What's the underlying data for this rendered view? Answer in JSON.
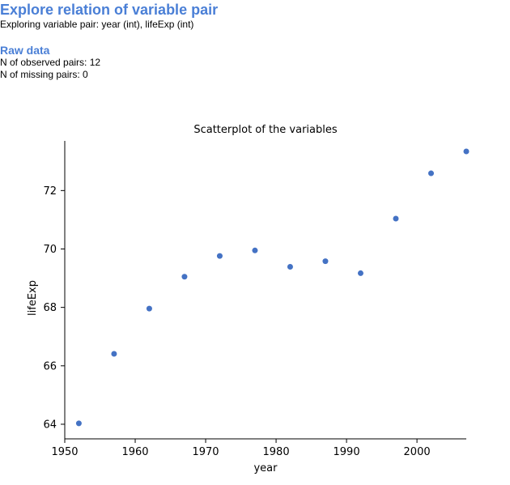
{
  "header": {
    "title": "Explore relation of variable pair",
    "subtitle": "Exploring variable pair: year (int), lifeExp (int)"
  },
  "raw_data": {
    "title": "Raw data",
    "observed_pairs": "N of observed pairs: 12",
    "missing_pairs": "N of missing pairs: 0"
  },
  "colors": {
    "accent": "#4a7fd6",
    "point": "#4472c4"
  },
  "chart_data": {
    "type": "scatter",
    "title": "Scatterplot of the variables",
    "xlabel": "year",
    "ylabel": "lifeExp",
    "xlim": [
      1950,
      2007
    ],
    "ylim": [
      63.5,
      73.7
    ],
    "xticks": [
      1950,
      1960,
      1970,
      1980,
      1990,
      2000
    ],
    "yticks": [
      64,
      66,
      68,
      70,
      72
    ],
    "grid": false,
    "x": [
      1952,
      1957,
      1962,
      1967,
      1972,
      1977,
      1982,
      1987,
      1992,
      1997,
      2002,
      2007
    ],
    "y": [
      64.03,
      66.41,
      67.96,
      69.05,
      69.76,
      69.95,
      69.39,
      69.58,
      69.17,
      71.04,
      72.59,
      73.34
    ]
  }
}
